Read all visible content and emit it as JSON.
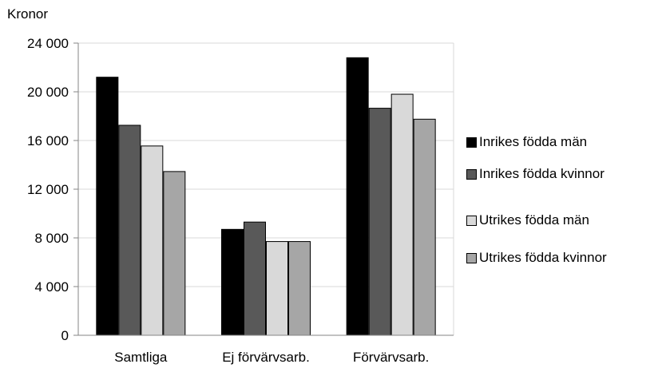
{
  "chart_data": {
    "type": "bar",
    "ylabel": "Kronor",
    "ylim": [
      0,
      24000
    ],
    "yticks": [
      {
        "value": 0,
        "label": "0"
      },
      {
        "value": 4000,
        "label": "4 000"
      },
      {
        "value": 8000,
        "label": "8 000"
      },
      {
        "value": 12000,
        "label": "12 000"
      },
      {
        "value": 16000,
        "label": "16 000"
      },
      {
        "value": 20000,
        "label": "20 000"
      },
      {
        "value": 24000,
        "label": "24 000"
      }
    ],
    "categories": [
      "Samtliga",
      "Ej förvärvsarb.",
      "Förvärvsarb."
    ],
    "series": [
      {
        "name": "Inrikes födda män",
        "color": "#000000",
        "values": [
          21200,
          8700,
          22800
        ]
      },
      {
        "name": "Inrikes födda kvinnor",
        "color": "#595959",
        "values": [
          17250,
          9300,
          18650
        ]
      },
      {
        "name": "Utrikes födda män",
        "color": "#d9d9d9",
        "values": [
          15550,
          7700,
          19800
        ]
      },
      {
        "name": "Utrikes födda kvinnor",
        "color": "#a6a6a6",
        "values": [
          13450,
          7700,
          17750
        ]
      }
    ],
    "grid": true,
    "legend_position": "right"
  }
}
